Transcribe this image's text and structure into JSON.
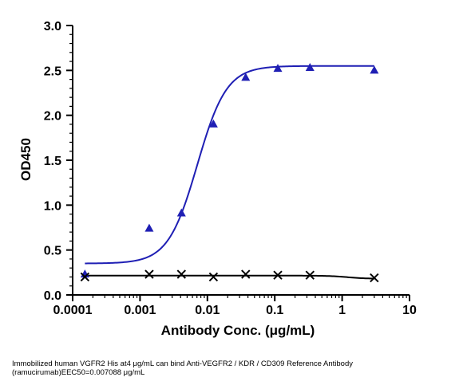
{
  "chart_data": {
    "type": "scatter",
    "title": "",
    "xlabel": "Antibody Conc. (μg/mL)",
    "ylabel": "OD450",
    "xscale": "log",
    "xlim": [
      0.0001,
      10
    ],
    "ylim": [
      0,
      3.0
    ],
    "x_ticks": [
      "0.0001",
      "0.001",
      "0.01",
      "0.1",
      "1",
      "10"
    ],
    "y_ticks": [
      "0.0",
      "0.5",
      "1.0",
      "1.5",
      "2.0",
      "2.5",
      "3.0"
    ],
    "grid": false,
    "legend": "none",
    "series": [
      {
        "marker": "triangle",
        "color": "#1f1fb4",
        "x": [
          0.000152,
          0.00137,
          0.00412,
          0.0123,
          0.037,
          0.111,
          0.333,
          3.0
        ],
        "y": [
          0.23,
          0.74,
          0.91,
          1.9,
          2.42,
          2.52,
          2.53,
          2.5
        ],
        "fit": {
          "bottom": 0.35,
          "top": 2.55,
          "ec50": 0.007088,
          "hill": 2.0
        }
      },
      {
        "marker": "x",
        "color": "#000000",
        "x": [
          0.000152,
          0.00137,
          0.00412,
          0.0123,
          0.037,
          0.111,
          0.333,
          3.0
        ],
        "y": [
          0.2,
          0.23,
          0.23,
          0.2,
          0.23,
          0.22,
          0.22,
          0.19
        ],
        "fit": {
          "bottom": 0.18,
          "top": 0.215,
          "ec50": 1.2,
          "hill": -3.0
        }
      }
    ]
  },
  "caption": "Immobilized human VGFR2 His at4 μg/mL can bind  Anti-VEGFR2 / KDR / CD309 Reference Antibody (ramucirumab)EEC50=0.007088 μg/mL"
}
